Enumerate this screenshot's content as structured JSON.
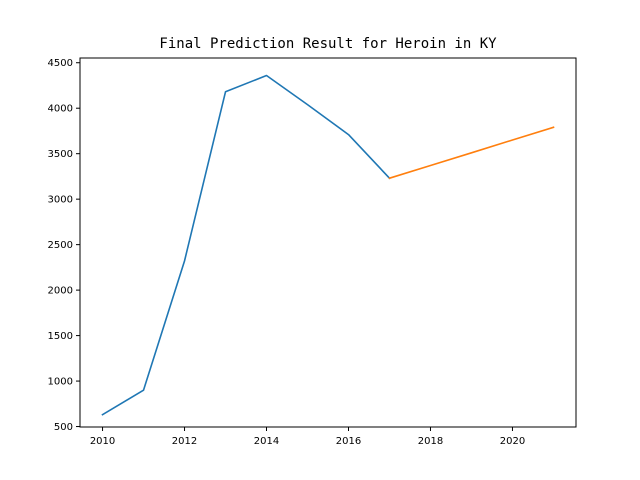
{
  "chart_data": {
    "type": "line",
    "title": "Final Prediction Result for Heroin in KY",
    "xlabel": "",
    "ylabel": "",
    "xlim": [
      2009.45,
      2021.55
    ],
    "ylim": [
      495,
      4552
    ],
    "grid": false,
    "xticks": [
      2010,
      2012,
      2014,
      2016,
      2018,
      2020
    ],
    "yticks": [
      500,
      1000,
      1500,
      2000,
      2500,
      3000,
      3500,
      4000,
      4500
    ],
    "series": [
      {
        "color": "#1f77b4",
        "x": [
          2010,
          2011,
          2012,
          2013,
          2014,
          2015,
          2016,
          2017
        ],
        "y": [
          630,
          900,
          2320,
          4180,
          4360,
          4040,
          3710,
          3230
        ]
      },
      {
        "color": "#ff7f0e",
        "x": [
          2017,
          2018,
          2019,
          2020,
          2021
        ],
        "y": [
          3230,
          3370,
          3510,
          3650,
          3790
        ]
      }
    ]
  }
}
